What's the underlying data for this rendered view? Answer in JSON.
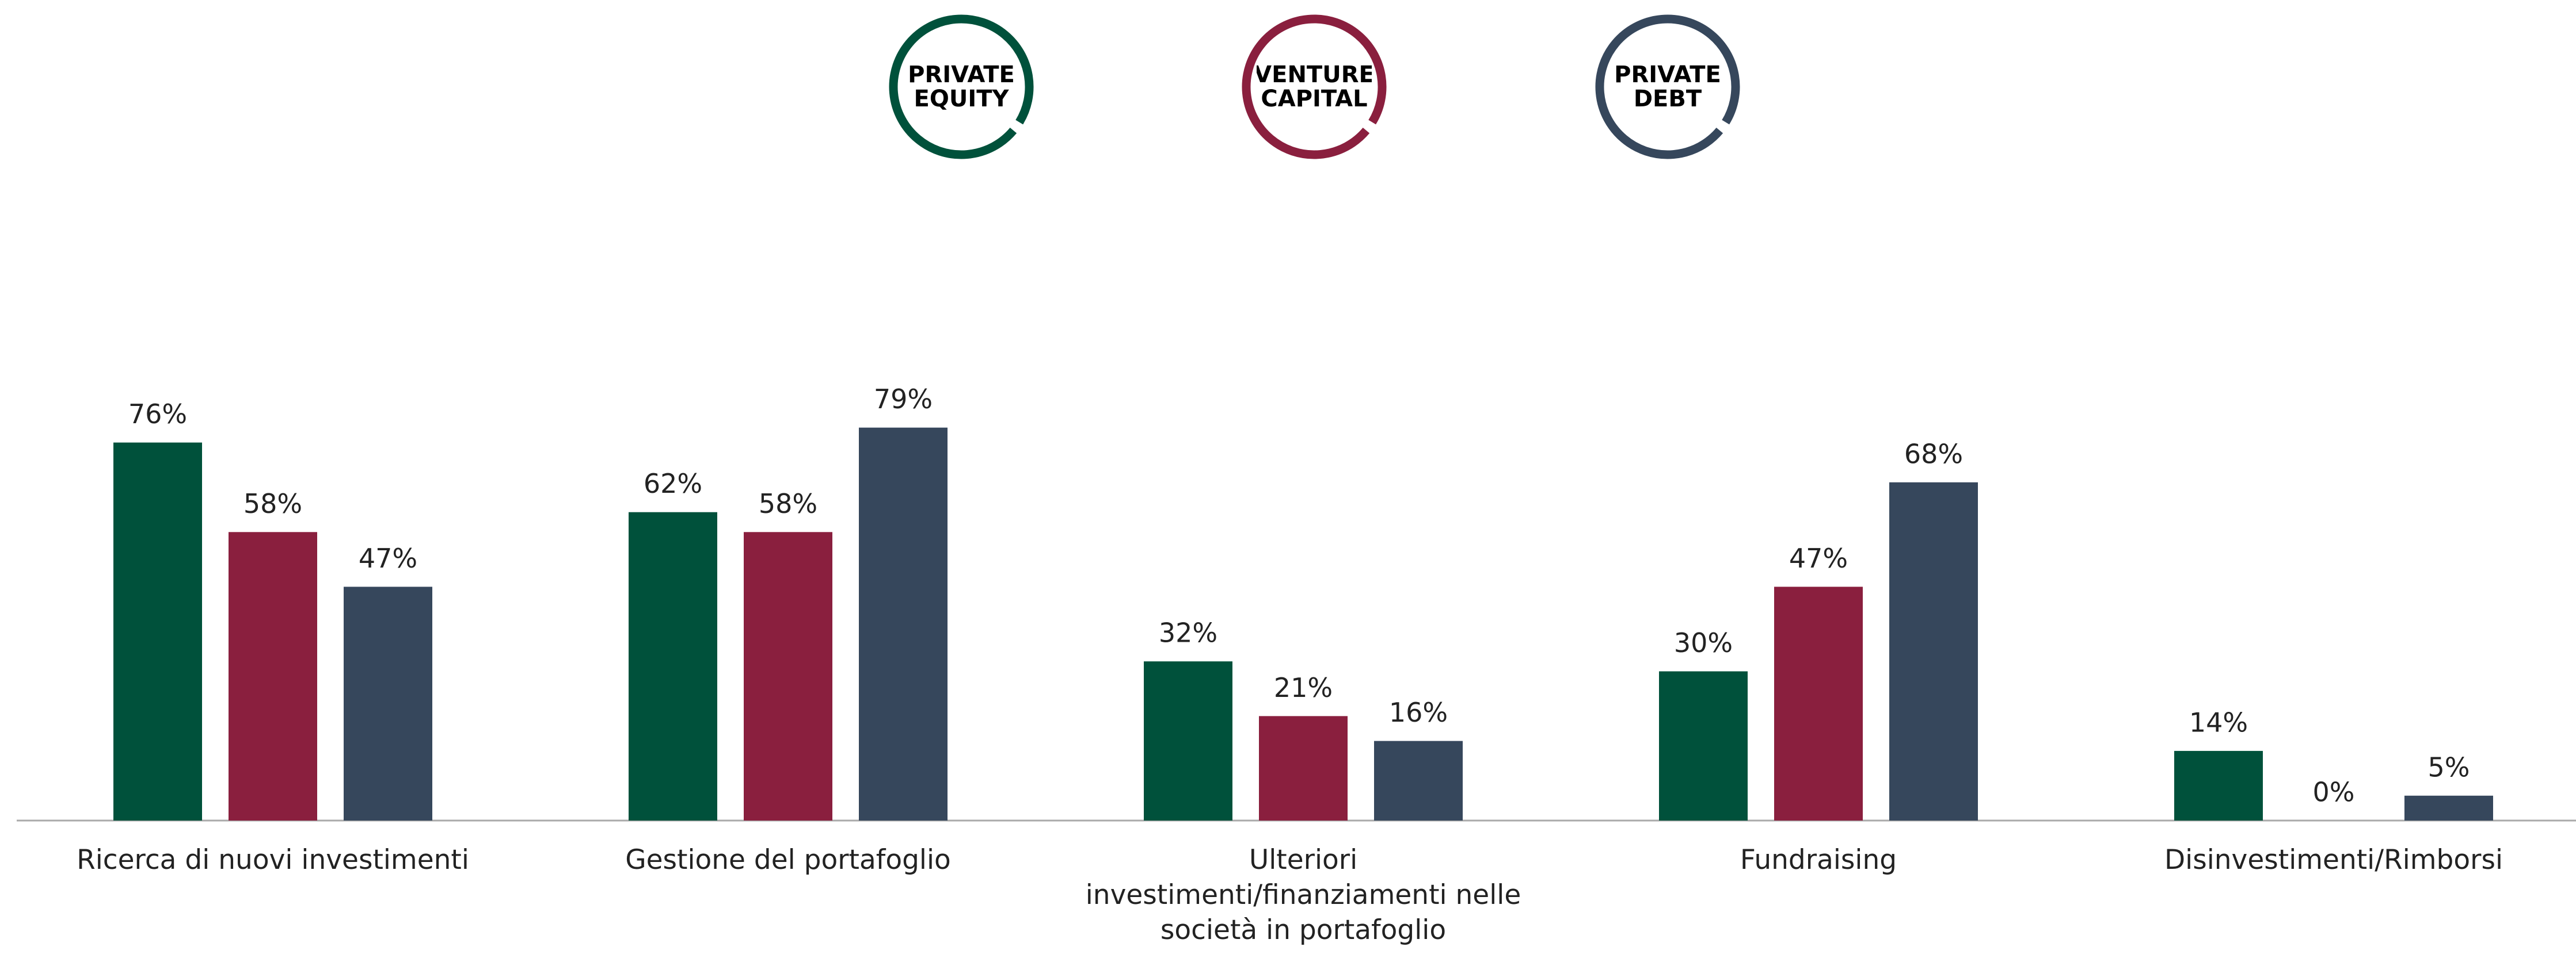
{
  "chart_data": {
    "type": "bar",
    "categories": [
      "Ricerca di nuovi investimenti",
      "Gestione del portafoglio",
      "Ulteriori investimenti/finanziamenti nelle società in portafoglio",
      "Fundraising",
      "Disinvestimenti/Rimborsi"
    ],
    "series": [
      {
        "name": "PRIVATE EQUITY",
        "color": "#00513b",
        "values": [
          76,
          62,
          32,
          30,
          14
        ],
        "value_labels": [
          "76%",
          "62%",
          "32%",
          "30%",
          "14%"
        ]
      },
      {
        "name": "VENTURE CAPITAL",
        "color": "#8a1f3e",
        "values": [
          58,
          58,
          21,
          47,
          0
        ],
        "value_labels": [
          "58%",
          "58%",
          "21%",
          "47%",
          "0%"
        ]
      },
      {
        "name": "PRIVATE DEBT",
        "color": "#36475c",
        "values": [
          47,
          79,
          16,
          68,
          5
        ],
        "value_labels": [
          "47%",
          "79%",
          "16%",
          "68%",
          "5%"
        ]
      }
    ],
    "ylim": [
      0,
      100
    ],
    "legend": "top"
  }
}
